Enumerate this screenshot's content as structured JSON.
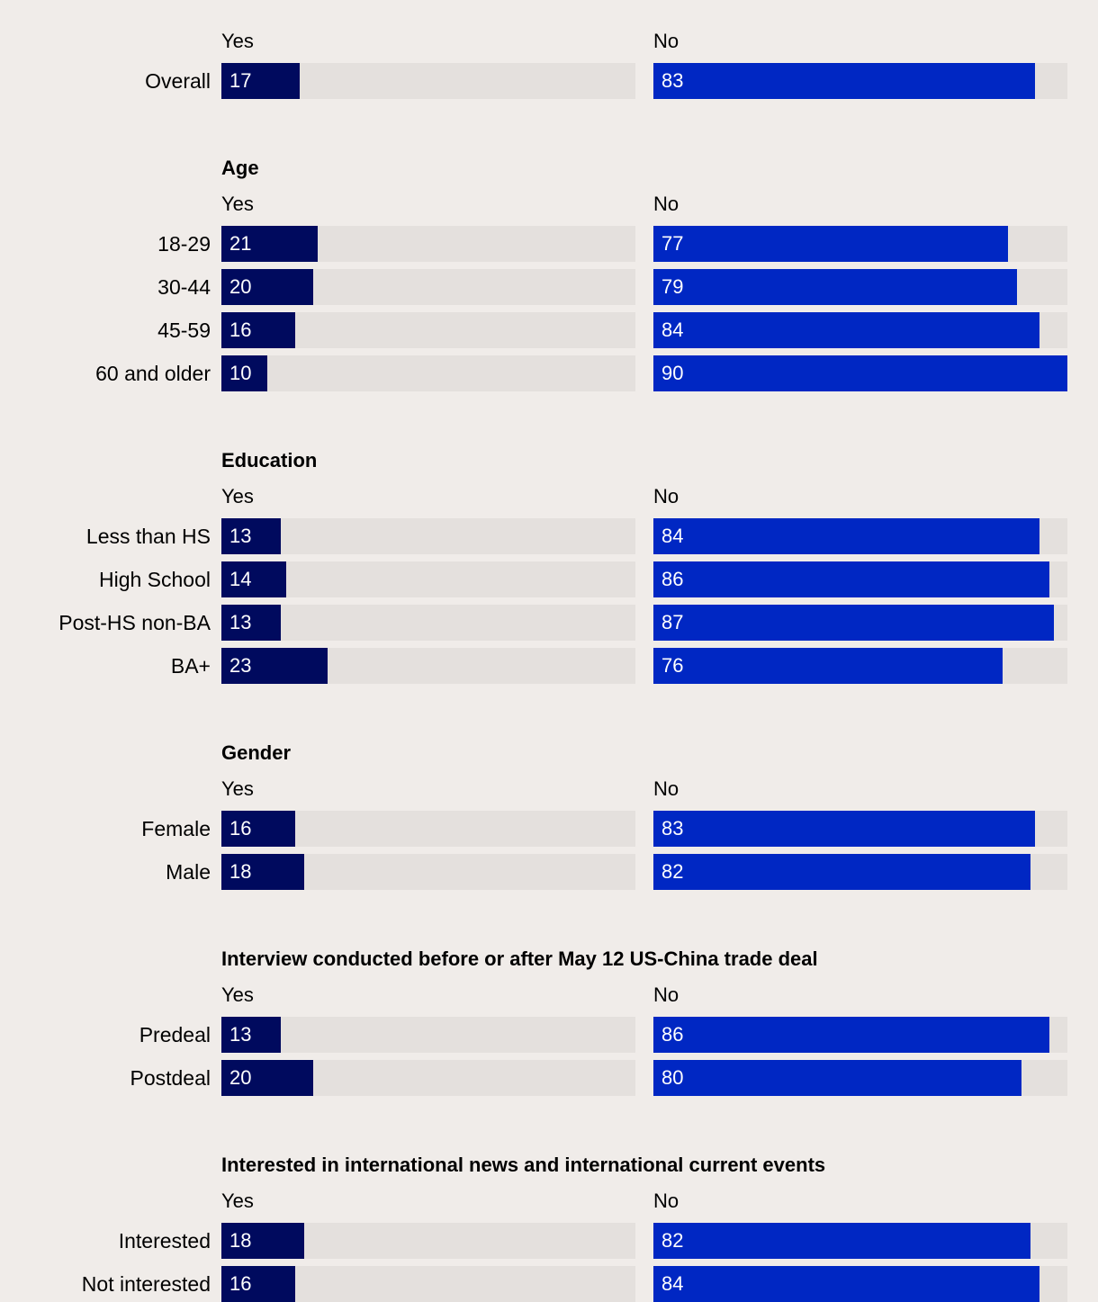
{
  "chart_data": {
    "type": "bar",
    "orientation": "horizontal",
    "layout": "two-panel diverging (Yes / No)",
    "column_labels": {
      "yes": "Yes",
      "no": "No"
    },
    "colors": {
      "yes": "#000a5e",
      "no": "#0027c3",
      "track": "#e4e0dd",
      "background": "#f0ece9"
    },
    "scale_max": 90,
    "groups": [
      {
        "title": "",
        "rows": [
          {
            "label": "Overall",
            "yes": 17,
            "no": 83
          }
        ]
      },
      {
        "title": "Age",
        "rows": [
          {
            "label": "18-29",
            "yes": 21,
            "no": 77
          },
          {
            "label": "30-44",
            "yes": 20,
            "no": 79
          },
          {
            "label": "45-59",
            "yes": 16,
            "no": 84
          },
          {
            "label": "60 and older",
            "yes": 10,
            "no": 90
          }
        ]
      },
      {
        "title": "Education",
        "rows": [
          {
            "label": "Less than HS",
            "yes": 13,
            "no": 84
          },
          {
            "label": "High School",
            "yes": 14,
            "no": 86
          },
          {
            "label": "Post-HS non-BA",
            "yes": 13,
            "no": 87
          },
          {
            "label": "BA+",
            "yes": 23,
            "no": 76
          }
        ]
      },
      {
        "title": "Gender",
        "rows": [
          {
            "label": "Female",
            "yes": 16,
            "no": 83
          },
          {
            "label": "Male",
            "yes": 18,
            "no": 82
          }
        ]
      },
      {
        "title": "Interview conducted before or after May 12 US-China trade deal",
        "rows": [
          {
            "label": "Predeal",
            "yes": 13,
            "no": 86
          },
          {
            "label": "Postdeal",
            "yes": 20,
            "no": 80
          }
        ]
      },
      {
        "title": "Interested in international news and international current events",
        "rows": [
          {
            "label": "Interested",
            "yes": 18,
            "no": 82
          },
          {
            "label": "Not interested",
            "yes": 16,
            "no": 84
          }
        ]
      }
    ]
  }
}
